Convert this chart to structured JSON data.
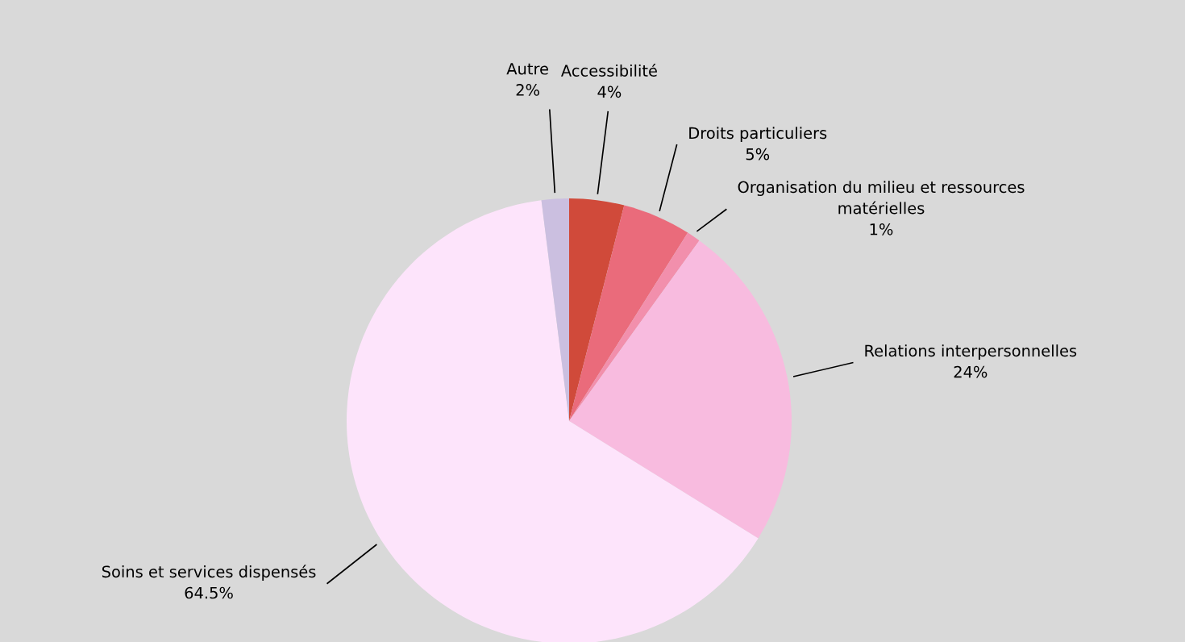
{
  "chart_data": {
    "type": "pie",
    "categories": [
      "Accessibilité",
      "Droits particuliers",
      "Organisation du milieu et ressources\nmatérielles",
      "Relations interpersonnelles",
      "Soins et services dispensés",
      "Autre"
    ],
    "values": [
      4,
      5,
      1,
      24,
      64.5,
      2
    ],
    "value_labels": [
      "4%",
      "5%",
      "1%",
      "24%",
      "64.5%",
      "2%"
    ],
    "colors": [
      "#d04a3a",
      "#ea6b7b",
      "#f28fac",
      "#f8bbdf",
      "#fde4fb",
      "#cbbfe0"
    ],
    "legend": false
  }
}
